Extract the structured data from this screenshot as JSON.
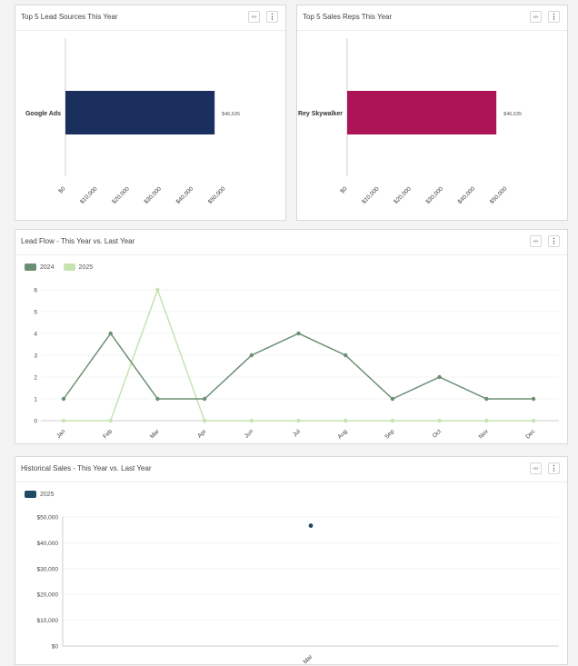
{
  "cards": {
    "lead_sources": {
      "title": "Top 5 Lead Sources This Year"
    },
    "sales_reps": {
      "title": "Top 5 Sales Reps This Year"
    },
    "lead_flow": {
      "title": "Lead Flow - This Year vs. Last Year"
    },
    "historical_sales": {
      "title": "Historical Sales - This Year vs. Last Year"
    }
  },
  "icons": {
    "expand": "expand-icon",
    "more": "more-vertical-icon",
    "expand_glyph": "⇹",
    "more_glyph": "⋮"
  },
  "chart_data": [
    {
      "type": "bar",
      "orientation": "horizontal",
      "title": "Top 5 Lead Sources This Year",
      "categories": [
        "Google Ads"
      ],
      "values": [
        46635
      ],
      "value_labels": [
        "$46,635"
      ],
      "xlim": [
        0,
        50000
      ],
      "x_ticks": [
        "$0",
        "$10,000",
        "$20,000",
        "$30,000",
        "$40,000",
        "$50,000"
      ],
      "color": "#1b2f5e"
    },
    {
      "type": "bar",
      "orientation": "horizontal",
      "title": "Top 5 Sales Reps This Year",
      "categories": [
        "Rey Skywalker"
      ],
      "values": [
        46635
      ],
      "value_labels": [
        "$46,635"
      ],
      "xlim": [
        0,
        50000
      ],
      "x_ticks": [
        "$0",
        "$10,000",
        "$20,000",
        "$30,000",
        "$40,000",
        "$50,000"
      ],
      "color": "#ad1457"
    },
    {
      "type": "line",
      "title": "Lead Flow - This Year vs. Last Year",
      "categories": [
        "Jan",
        "Feb",
        "Mar",
        "Apr",
        "Jun",
        "Jul",
        "Aug",
        "Sep",
        "Oct",
        "Nov",
        "Dec"
      ],
      "ylim": [
        0,
        6
      ],
      "y_ticks": [
        "0",
        "1",
        "2",
        "3",
        "4",
        "5",
        "6"
      ],
      "legend": "top-left",
      "series": [
        {
          "name": "2024",
          "color": "#6b8f73",
          "values": [
            1,
            4,
            1,
            1,
            3,
            4,
            3,
            1,
            2,
            1,
            1
          ]
        },
        {
          "name": "2025",
          "color": "#c6e3b0",
          "values": [
            0,
            0,
            6,
            0,
            0,
            0,
            0,
            0,
            0,
            0,
            0
          ]
        }
      ]
    },
    {
      "type": "scatter",
      "title": "Historical Sales - This Year vs. Last Year",
      "categories": [
        "Mar"
      ],
      "ylim": [
        0,
        50000
      ],
      "y_ticks": [
        "$0",
        "$10,000",
        "$20,000",
        "$30,000",
        "$40,000",
        "$50,000"
      ],
      "legend": "top-left",
      "series": [
        {
          "name": "2025",
          "color": "#1e4a66",
          "values": [
            46635
          ]
        }
      ]
    }
  ]
}
